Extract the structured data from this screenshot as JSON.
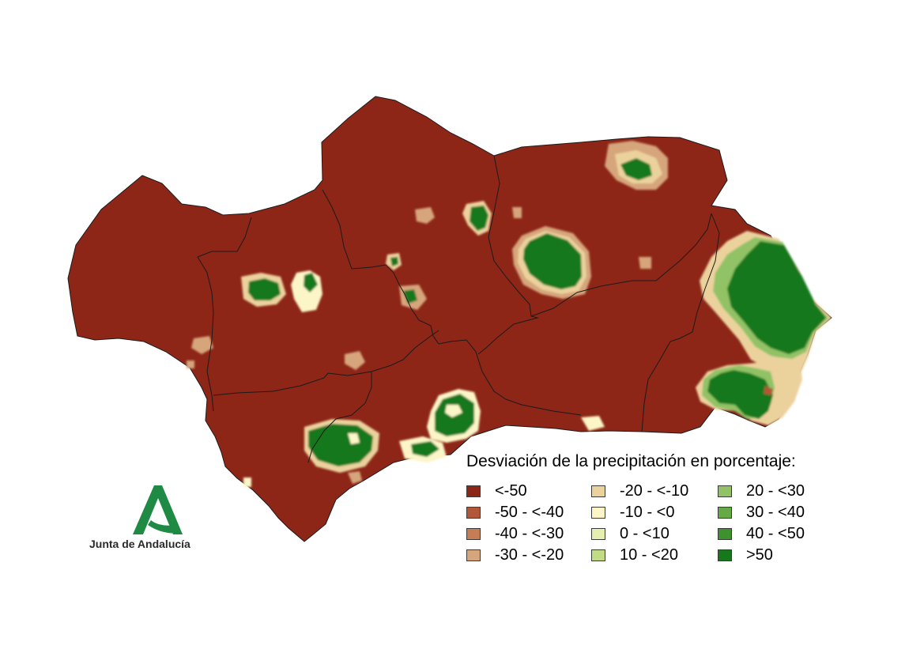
{
  "legend": {
    "title": "Desviación de la precipitación en porcentaje:",
    "classes": [
      {
        "label": "<-50",
        "color": "#8e2618"
      },
      {
        "label": "-50 - <-40",
        "color": "#b25739"
      },
      {
        "label": "-40 - <-30",
        "color": "#c67c54"
      },
      {
        "label": "-30 - <-20",
        "color": "#d6a57c"
      },
      {
        "label": "-20 - <-10",
        "color": "#ebd29d"
      },
      {
        "label": "-10 - <0",
        "color": "#fbf5c8"
      },
      {
        "label": "0 - <10",
        "color": "#e7efb0"
      },
      {
        "label": "10 - <20",
        "color": "#c2dc86"
      },
      {
        "label": "20 - <30",
        "color": "#91c265"
      },
      {
        "label": "30 - <40",
        "color": "#66aa45"
      },
      {
        "label": "40 - <50",
        "color": "#3d922d"
      },
      {
        "label": ">50",
        "color": "#16781a"
      }
    ]
  },
  "brand": {
    "name": "Junta de Andalucía",
    "logo_color": "#1e8a43"
  },
  "map": {
    "base_color": "#8e2618",
    "border_color": "#1a1a1a"
  }
}
